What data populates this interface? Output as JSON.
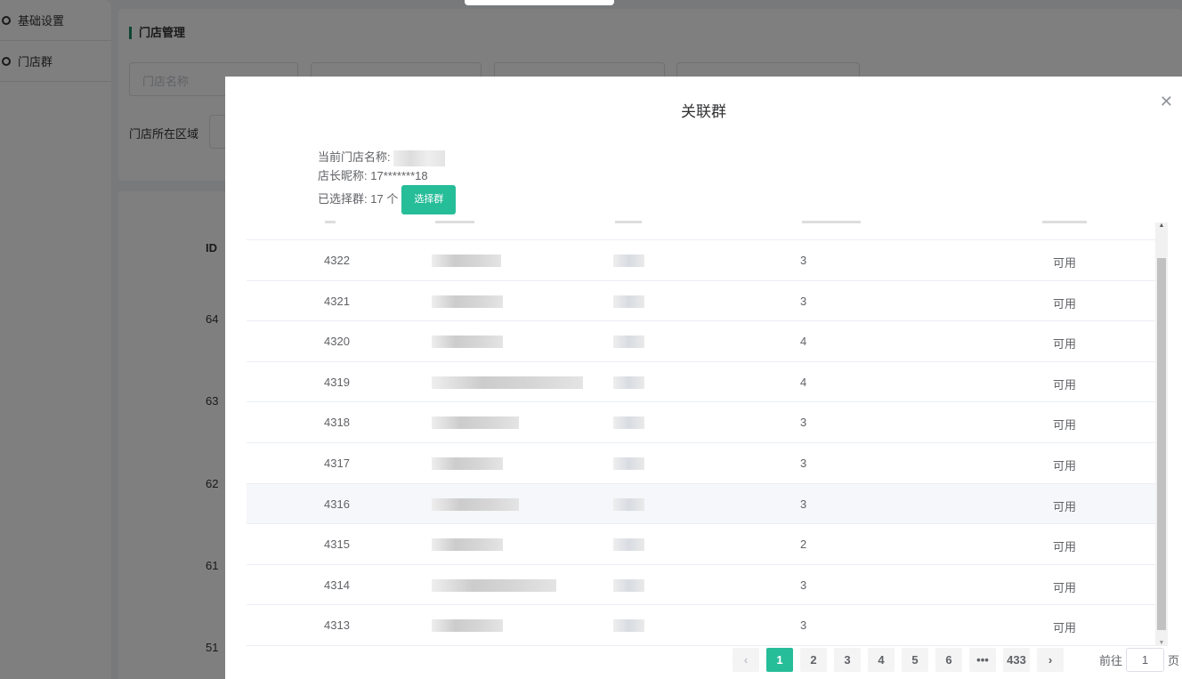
{
  "sidebar": {
    "items": [
      {
        "label": "基础设置"
      },
      {
        "label": "门店群"
      }
    ]
  },
  "main": {
    "title": "门店管理",
    "filters": {
      "store_name_placeholder": "门店名称"
    },
    "area_label": "门店所在区域",
    "column_id": "ID",
    "ids": [
      "64",
      "63",
      "62",
      "61",
      "51"
    ]
  },
  "modal": {
    "title": "关联群",
    "close_icon": "close-icon",
    "info": {
      "store_name_label": "当前门店名称:",
      "manager_label": "店长昵称:",
      "manager_value": "17*******18",
      "selected_label": "已选择群:",
      "selected_value": "17 个",
      "select_button": "选择群"
    },
    "rows": [
      {
        "id": "4322",
        "count": "3",
        "status": "可用"
      },
      {
        "id": "4321",
        "count": "3",
        "status": "可用"
      },
      {
        "id": "4320",
        "count": "4",
        "status": "可用"
      },
      {
        "id": "4319",
        "count": "4",
        "status": "可用"
      },
      {
        "id": "4318",
        "count": "3",
        "status": "可用"
      },
      {
        "id": "4317",
        "count": "3",
        "status": "可用"
      },
      {
        "id": "4316",
        "count": "3",
        "status": "可用"
      },
      {
        "id": "4315",
        "count": "2",
        "status": "可用"
      },
      {
        "id": "4314",
        "count": "3",
        "status": "可用"
      },
      {
        "id": "4313",
        "count": "3",
        "status": "可用"
      }
    ],
    "pagination": {
      "pages": [
        "1",
        "2",
        "3",
        "4",
        "5",
        "6",
        "•••",
        "433"
      ],
      "current": "1",
      "goto_label": "前往",
      "goto_value": "1",
      "page_suffix": "页"
    }
  },
  "colors": {
    "accent": "#26bd99"
  }
}
